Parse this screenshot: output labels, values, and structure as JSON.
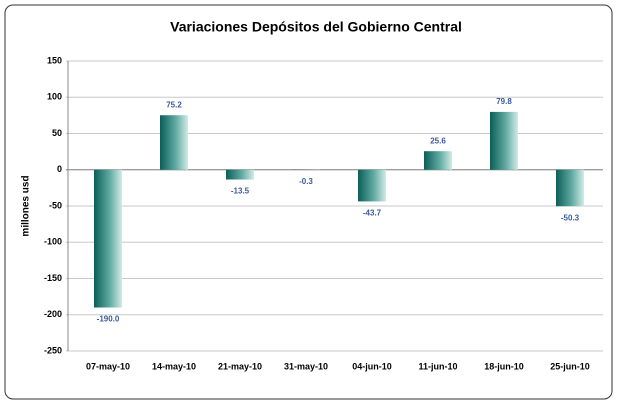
{
  "chart_data": {
    "type": "bar",
    "title": "Variaciones Depósitos del Gobierno Central",
    "ylabel": "millones usd",
    "categories": [
      "07-may-10",
      "14-may-10",
      "21-may-10",
      "31-may-10",
      "04-jun-10",
      "11-jun-10",
      "18-jun-10",
      "25-jun-10"
    ],
    "values": [
      -190.0,
      75.2,
      -13.5,
      -0.3,
      -43.7,
      25.6,
      79.8,
      -50.3
    ],
    "value_labels": [
      "-190.0",
      "75.2",
      "-13.5",
      "-0.3",
      "-43.7",
      "25.6",
      "79.8",
      "-50.3"
    ],
    "color": "#0e6e66",
    "ylim": [
      -250,
      150
    ],
    "yticks": [
      -250,
      -200,
      -150,
      -100,
      -50,
      0,
      50,
      100,
      150
    ],
    "grid": true
  }
}
